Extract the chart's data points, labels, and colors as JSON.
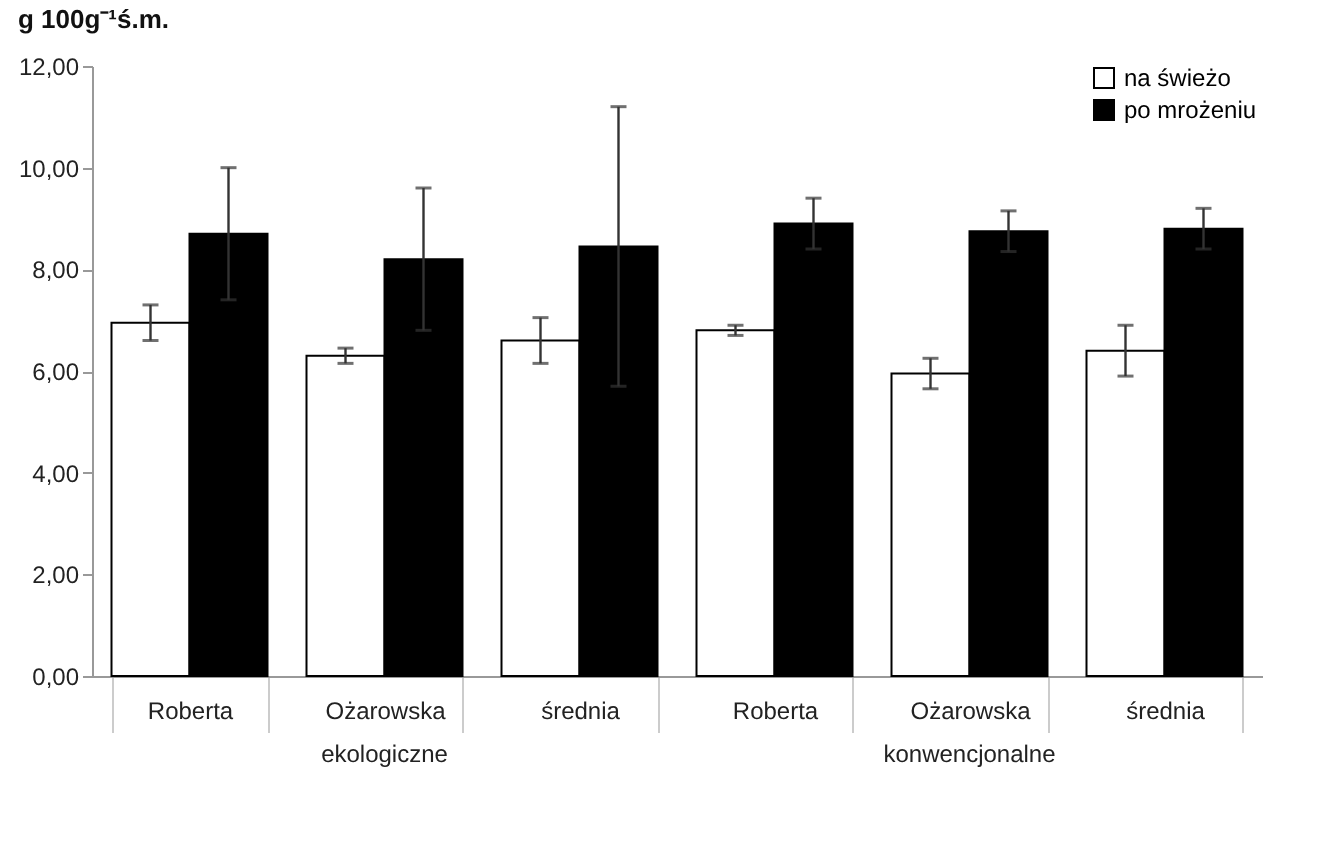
{
  "chart_data": {
    "type": "bar",
    "ylabel": "g 100g⁻¹ś.m.",
    "categories": [
      "Roberta",
      "Ożarowska",
      "średnia",
      "Roberta",
      "Ożarowska",
      "średnia"
    ],
    "annotations": [
      "ekologiczne",
      "konwencjonalne"
    ],
    "series": [
      {
        "name": "na świeżo",
        "color": "#ffffff",
        "values": [
          6.95,
          6.3,
          6.6,
          6.8,
          5.95,
          6.4
        ],
        "errors": [
          0.35,
          0.15,
          0.45,
          0.1,
          0.3,
          0.5
        ]
      },
      {
        "name": "po mrożeniu",
        "color": "#000000",
        "values": [
          8.7,
          8.2,
          8.45,
          8.9,
          8.75,
          8.8
        ],
        "errors": [
          1.3,
          1.4,
          2.75,
          0.5,
          0.4,
          0.4
        ]
      }
    ],
    "ylim": [
      0,
      12
    ],
    "yticks": [
      {
        "value": 0,
        "label": "0,00"
      },
      {
        "value": 2,
        "label": "2,00"
      },
      {
        "value": 4,
        "label": "4,00"
      },
      {
        "value": 6,
        "label": "6,00"
      },
      {
        "value": 8,
        "label": "8,00"
      },
      {
        "value": 10,
        "label": "10,00"
      },
      {
        "value": 12,
        "label": "12,00"
      }
    ],
    "grid": false,
    "legend": "top right"
  }
}
